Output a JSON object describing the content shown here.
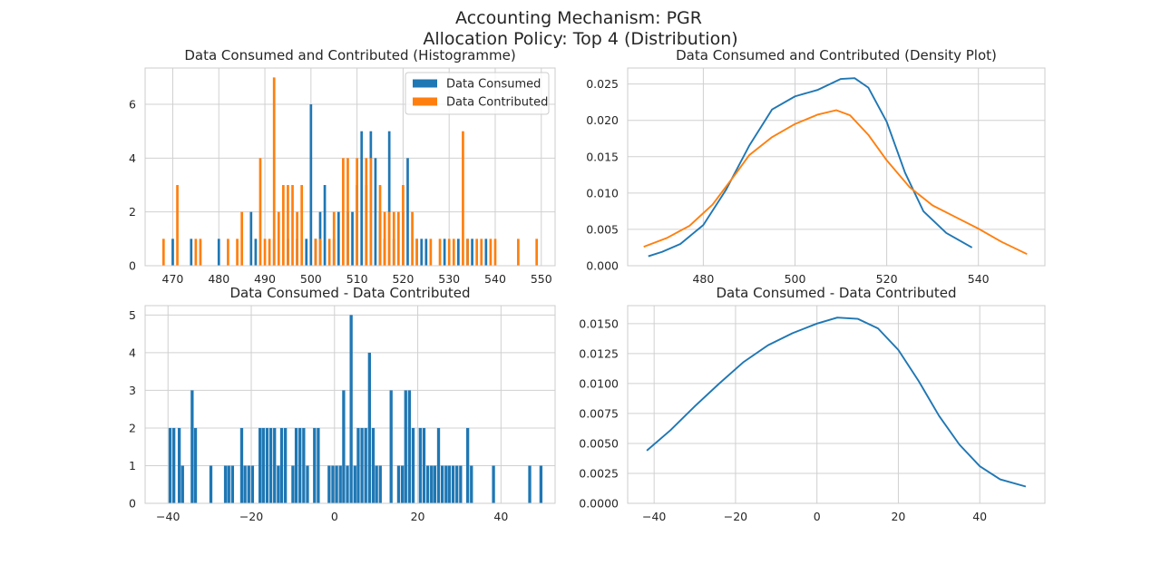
{
  "figure": {
    "suptitle_line1": "Accounting Mechanism: PGR",
    "suptitle_line2": "Allocation Policy: Top 4 (Distribution)"
  },
  "colors": {
    "consumed": "#1f77b4",
    "contributed": "#ff7f0e"
  },
  "chart_data": [
    {
      "id": "hist-top",
      "type": "bar",
      "title": "Data Consumed and Contributed (Histogramme)",
      "xlim": [
        464,
        553
      ],
      "ylim": [
        0,
        7.35
      ],
      "xticks": [
        470,
        480,
        490,
        500,
        510,
        520,
        530,
        540,
        550
      ],
      "yticks": [
        0,
        2,
        4,
        6
      ],
      "legend_position": "upper right",
      "series": [
        {
          "name": "Data Consumed",
          "color_key": "consumed",
          "points": [
            {
              "x": 470,
              "y": 1
            },
            {
              "x": 474,
              "y": 1
            },
            {
              "x": 480,
              "y": 1
            },
            {
              "x": 487,
              "y": 2
            },
            {
              "x": 488,
              "y": 1
            },
            {
              "x": 492,
              "y": 1
            },
            {
              "x": 495,
              "y": 1
            },
            {
              "x": 497,
              "y": 1
            },
            {
              "x": 499,
              "y": 1
            },
            {
              "x": 500,
              "y": 6
            },
            {
              "x": 501,
              "y": 1
            },
            {
              "x": 502,
              "y": 2
            },
            {
              "x": 503,
              "y": 3
            },
            {
              "x": 505,
              "y": 1
            },
            {
              "x": 506,
              "y": 2
            },
            {
              "x": 508,
              "y": 2
            },
            {
              "x": 509,
              "y": 2
            },
            {
              "x": 510,
              "y": 3
            },
            {
              "x": 511,
              "y": 5
            },
            {
              "x": 512,
              "y": 3
            },
            {
              "x": 513,
              "y": 5
            },
            {
              "x": 514,
              "y": 4
            },
            {
              "x": 515,
              "y": 2
            },
            {
              "x": 516,
              "y": 1
            },
            {
              "x": 517,
              "y": 5
            },
            {
              "x": 518,
              "y": 1
            },
            {
              "x": 520,
              "y": 2
            },
            {
              "x": 521,
              "y": 4
            },
            {
              "x": 523,
              "y": 1
            },
            {
              "x": 524,
              "y": 1
            },
            {
              "x": 525,
              "y": 1
            },
            {
              "x": 529,
              "y": 1
            },
            {
              "x": 532,
              "y": 1
            },
            {
              "x": 534,
              "y": 1
            },
            {
              "x": 535,
              "y": 1
            },
            {
              "x": 538,
              "y": 1
            }
          ]
        },
        {
          "name": "Data Contributed",
          "color_key": "contributed",
          "points": [
            {
              "x": 468,
              "y": 1
            },
            {
              "x": 471,
              "y": 3
            },
            {
              "x": 475,
              "y": 1
            },
            {
              "x": 476,
              "y": 1
            },
            {
              "x": 482,
              "y": 1
            },
            {
              "x": 484,
              "y": 1
            },
            {
              "x": 485,
              "y": 2
            },
            {
              "x": 489,
              "y": 4
            },
            {
              "x": 490,
              "y": 1
            },
            {
              "x": 491,
              "y": 1
            },
            {
              "x": 492,
              "y": 7
            },
            {
              "x": 493,
              "y": 2
            },
            {
              "x": 494,
              "y": 3
            },
            {
              "x": 495,
              "y": 3
            },
            {
              "x": 496,
              "y": 3
            },
            {
              "x": 497,
              "y": 2
            },
            {
              "x": 498,
              "y": 3
            },
            {
              "x": 501,
              "y": 1
            },
            {
              "x": 502,
              "y": 1
            },
            {
              "x": 504,
              "y": 1
            },
            {
              "x": 505,
              "y": 2
            },
            {
              "x": 507,
              "y": 4
            },
            {
              "x": 508,
              "y": 4
            },
            {
              "x": 510,
              "y": 4
            },
            {
              "x": 512,
              "y": 4
            },
            {
              "x": 513,
              "y": 4
            },
            {
              "x": 515,
              "y": 3
            },
            {
              "x": 516,
              "y": 2
            },
            {
              "x": 517,
              "y": 2
            },
            {
              "x": 518,
              "y": 2
            },
            {
              "x": 519,
              "y": 2
            },
            {
              "x": 520,
              "y": 3
            },
            {
              "x": 522,
              "y": 2
            },
            {
              "x": 523,
              "y": 1
            },
            {
              "x": 526,
              "y": 1
            },
            {
              "x": 528,
              "y": 1
            },
            {
              "x": 530,
              "y": 1
            },
            {
              "x": 531,
              "y": 1
            },
            {
              "x": 533,
              "y": 5
            },
            {
              "x": 534,
              "y": 1
            },
            {
              "x": 536,
              "y": 1
            },
            {
              "x": 537,
              "y": 1
            },
            {
              "x": 539,
              "y": 1
            },
            {
              "x": 540,
              "y": 1
            },
            {
              "x": 545,
              "y": 1
            },
            {
              "x": 549,
              "y": 1
            }
          ]
        }
      ]
    },
    {
      "id": "kde-top",
      "type": "line",
      "title": "Data Consumed and Contributed (Density Plot)",
      "xlim": [
        463.5,
        554.5
      ],
      "ylim": [
        0,
        0.0272
      ],
      "xticks": [
        480,
        500,
        520,
        540
      ],
      "yticks": [
        0,
        0.005,
        0.01,
        0.015,
        0.02,
        0.025
      ],
      "ytick_labels": [
        "0.000",
        "0.005",
        "0.010",
        "0.015",
        "0.020",
        "0.025"
      ],
      "series": [
        {
          "name": "Data Consumed",
          "color_key": "consumed",
          "x": [
            468,
            471,
            475,
            480,
            485,
            490,
            495,
            500,
            505,
            510,
            513,
            516,
            520,
            524,
            528,
            533,
            538.6
          ],
          "y": [
            0.0013,
            0.0019,
            0.003,
            0.0056,
            0.0105,
            0.0165,
            0.0215,
            0.0233,
            0.0242,
            0.0257,
            0.0258,
            0.0245,
            0.0198,
            0.0128,
            0.0075,
            0.0045,
            0.0025
          ]
        },
        {
          "name": "Data Contributed",
          "color_key": "contributed",
          "x": [
            467,
            472,
            477,
            482,
            487,
            490,
            495,
            500,
            505,
            509,
            512,
            516,
            520,
            525,
            530,
            535,
            540,
            545,
            550.6
          ],
          "y": [
            0.0026,
            0.0038,
            0.0055,
            0.0084,
            0.0126,
            0.0152,
            0.0177,
            0.0195,
            0.0208,
            0.0214,
            0.0207,
            0.018,
            0.0145,
            0.0108,
            0.0083,
            0.0067,
            0.0051,
            0.0033,
            0.0016
          ]
        }
      ]
    },
    {
      "id": "hist-bottom",
      "type": "bar",
      "title": "Data Consumed - Data Contributed",
      "xlim": [
        -45.5,
        53
      ],
      "ylim": [
        0,
        5.25
      ],
      "xticks": [
        -40,
        -20,
        0,
        20,
        40
      ],
      "xtick_labels": [
        "−40",
        "−20",
        "0",
        "20",
        "40"
      ],
      "yticks": [
        0,
        1,
        2,
        3,
        4,
        5
      ],
      "series": [
        {
          "name": "",
          "color_key": "consumed",
          "points": [
            {
              "x": -39.5,
              "y": 2
            },
            {
              "x": -38.6,
              "y": 2
            },
            {
              "x": -37.3,
              "y": 2
            },
            {
              "x": -36.5,
              "y": 1
            },
            {
              "x": -34.2,
              "y": 3
            },
            {
              "x": -33.4,
              "y": 2
            },
            {
              "x": -29.7,
              "y": 1
            },
            {
              "x": -26.2,
              "y": 1
            },
            {
              "x": -25.4,
              "y": 1
            },
            {
              "x": -24.5,
              "y": 1
            },
            {
              "x": -22.3,
              "y": 2
            },
            {
              "x": -21.5,
              "y": 1
            },
            {
              "x": -20.6,
              "y": 1
            },
            {
              "x": -19.7,
              "y": 1
            },
            {
              "x": -17.9,
              "y": 2
            },
            {
              "x": -17.1,
              "y": 2
            },
            {
              "x": -16.2,
              "y": 2
            },
            {
              "x": -15.3,
              "y": 2
            },
            {
              "x": -14.4,
              "y": 2
            },
            {
              "x": -13.5,
              "y": 1
            },
            {
              "x": -12.7,
              "y": 2
            },
            {
              "x": -11.8,
              "y": 2
            },
            {
              "x": -10.0,
              "y": 1
            },
            {
              "x": -9.2,
              "y": 2
            },
            {
              "x": -8.3,
              "y": 2
            },
            {
              "x": -7.4,
              "y": 2
            },
            {
              "x": -6.5,
              "y": 1
            },
            {
              "x": -4.8,
              "y": 2
            },
            {
              "x": -3.9,
              "y": 2
            },
            {
              "x": -1.3,
              "y": 1
            },
            {
              "x": -0.4,
              "y": 1
            },
            {
              "x": 0.5,
              "y": 1
            },
            {
              "x": 1.4,
              "y": 1
            },
            {
              "x": 2.2,
              "y": 3
            },
            {
              "x": 3.1,
              "y": 1
            },
            {
              "x": 4.0,
              "y": 5
            },
            {
              "x": 4.9,
              "y": 1
            },
            {
              "x": 5.7,
              "y": 2
            },
            {
              "x": 6.6,
              "y": 2
            },
            {
              "x": 7.5,
              "y": 2
            },
            {
              "x": 8.4,
              "y": 4
            },
            {
              "x": 9.3,
              "y": 2
            },
            {
              "x": 10.1,
              "y": 1
            },
            {
              "x": 11.0,
              "y": 1
            },
            {
              "x": 13.6,
              "y": 3
            },
            {
              "x": 15.4,
              "y": 1
            },
            {
              "x": 16.3,
              "y": 1
            },
            {
              "x": 17.1,
              "y": 3
            },
            {
              "x": 18.0,
              "y": 3
            },
            {
              "x": 18.9,
              "y": 2
            },
            {
              "x": 20.6,
              "y": 2
            },
            {
              "x": 21.5,
              "y": 2
            },
            {
              "x": 22.4,
              "y": 1
            },
            {
              "x": 23.3,
              "y": 1
            },
            {
              "x": 24.1,
              "y": 1
            },
            {
              "x": 25.0,
              "y": 2
            },
            {
              "x": 25.9,
              "y": 1
            },
            {
              "x": 26.8,
              "y": 1
            },
            {
              "x": 27.6,
              "y": 1
            },
            {
              "x": 28.5,
              "y": 1
            },
            {
              "x": 29.4,
              "y": 1
            },
            {
              "x": 30.3,
              "y": 1
            },
            {
              "x": 32.0,
              "y": 2
            },
            {
              "x": 32.9,
              "y": 1
            },
            {
              "x": 38.2,
              "y": 1
            },
            {
              "x": 46.9,
              "y": 1
            },
            {
              "x": 49.6,
              "y": 1
            }
          ]
        }
      ]
    },
    {
      "id": "kde-bottom",
      "type": "line",
      "title": "Data Consumed - Data Contributed",
      "xlim": [
        -46.5,
        56
      ],
      "ylim": [
        0,
        0.0165
      ],
      "xticks": [
        -40,
        -20,
        0,
        20,
        40
      ],
      "xtick_labels": [
        "−40",
        "−20",
        "0",
        "20",
        "40"
      ],
      "yticks": [
        0,
        0.0025,
        0.005,
        0.0075,
        0.01,
        0.0125,
        0.015
      ],
      "ytick_labels": [
        "0.0000",
        "0.0025",
        "0.0050",
        "0.0075",
        "0.0100",
        "0.0125",
        "0.0150"
      ],
      "series": [
        {
          "name": "",
          "color_key": "consumed",
          "x": [
            -41.8,
            -36,
            -30,
            -24,
            -18,
            -12,
            -6,
            0,
            5,
            10,
            15,
            20,
            25,
            30,
            35,
            40,
            45,
            51.3
          ],
          "y": [
            0.0044,
            0.0061,
            0.0081,
            0.01,
            0.0118,
            0.0132,
            0.0142,
            0.015,
            0.0155,
            0.0154,
            0.0146,
            0.0128,
            0.0102,
            0.0073,
            0.0049,
            0.0031,
            0.002,
            0.0014
          ]
        }
      ]
    }
  ]
}
